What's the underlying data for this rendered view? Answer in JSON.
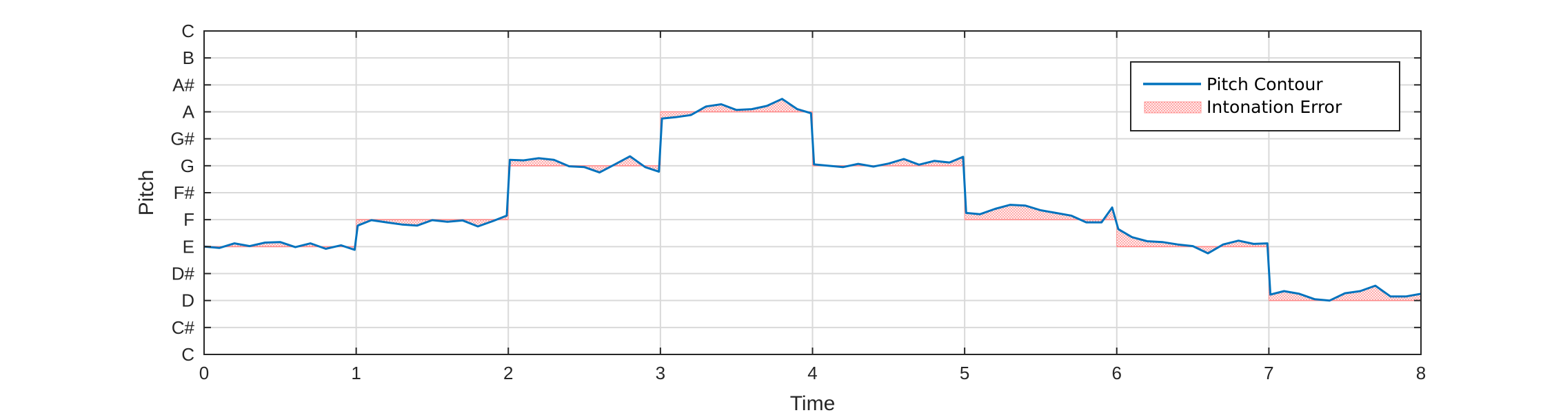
{
  "chart_data": {
    "type": "line",
    "xlabel": "Time",
    "ylabel": "Pitch",
    "xlim": [
      0,
      8
    ],
    "ylim": [
      0,
      12
    ],
    "x_ticks": [
      "0",
      "1",
      "2",
      "3",
      "4",
      "5",
      "6",
      "7",
      "8"
    ],
    "y_tick_labels": [
      "C",
      "C#",
      "D",
      "D#",
      "E",
      "F",
      "F#",
      "G",
      "G#",
      "A",
      "A#",
      "B",
      "C"
    ],
    "grid": true,
    "legend_position": "top-right",
    "colors": {
      "contour": "#0072BD",
      "error": "#ff8a8a",
      "grid": "#d9d9d9",
      "axis": "#262626"
    },
    "series": [
      {
        "name": "Pitch Contour",
        "points": [
          [
            0.0,
            4.0
          ],
          [
            0.1,
            3.95
          ],
          [
            0.2,
            4.12
          ],
          [
            0.3,
            4.02
          ],
          [
            0.4,
            4.15
          ],
          [
            0.5,
            4.17
          ],
          [
            0.6,
            3.98
          ],
          [
            0.7,
            4.12
          ],
          [
            0.8,
            3.92
          ],
          [
            0.9,
            4.05
          ],
          [
            0.99,
            3.88
          ],
          [
            1.01,
            4.78
          ],
          [
            1.1,
            4.98
          ],
          [
            1.2,
            4.9
          ],
          [
            1.3,
            4.82
          ],
          [
            1.4,
            4.78
          ],
          [
            1.5,
            4.98
          ],
          [
            1.6,
            4.92
          ],
          [
            1.7,
            4.97
          ],
          [
            1.8,
            4.75
          ],
          [
            1.9,
            4.95
          ],
          [
            1.99,
            5.15
          ],
          [
            2.01,
            7.22
          ],
          [
            2.1,
            7.2
          ],
          [
            2.2,
            7.28
          ],
          [
            2.3,
            7.22
          ],
          [
            2.4,
            6.98
          ],
          [
            2.5,
            6.95
          ],
          [
            2.6,
            6.75
          ],
          [
            2.7,
            7.05
          ],
          [
            2.8,
            7.35
          ],
          [
            2.9,
            6.95
          ],
          [
            2.99,
            6.78
          ],
          [
            3.01,
            8.75
          ],
          [
            3.1,
            8.8
          ],
          [
            3.2,
            8.88
          ],
          [
            3.3,
            9.2
          ],
          [
            3.4,
            9.28
          ],
          [
            3.5,
            9.07
          ],
          [
            3.6,
            9.1
          ],
          [
            3.7,
            9.22
          ],
          [
            3.8,
            9.48
          ],
          [
            3.9,
            9.1
          ],
          [
            3.99,
            8.95
          ],
          [
            4.01,
            7.05
          ],
          [
            4.1,
            7.0
          ],
          [
            4.2,
            6.95
          ],
          [
            4.3,
            7.07
          ],
          [
            4.4,
            6.97
          ],
          [
            4.5,
            7.08
          ],
          [
            4.6,
            7.25
          ],
          [
            4.7,
            7.04
          ],
          [
            4.8,
            7.18
          ],
          [
            4.9,
            7.12
          ],
          [
            4.99,
            7.33
          ],
          [
            5.01,
            5.25
          ],
          [
            5.1,
            5.2
          ],
          [
            5.2,
            5.4
          ],
          [
            5.3,
            5.55
          ],
          [
            5.4,
            5.52
          ],
          [
            5.5,
            5.35
          ],
          [
            5.6,
            5.25
          ],
          [
            5.7,
            5.15
          ],
          [
            5.8,
            4.9
          ],
          [
            5.9,
            4.9
          ],
          [
            5.97,
            5.45
          ],
          [
            6.01,
            4.65
          ],
          [
            6.1,
            4.35
          ],
          [
            6.2,
            4.2
          ],
          [
            6.3,
            4.17
          ],
          [
            6.4,
            4.08
          ],
          [
            6.5,
            4.02
          ],
          [
            6.6,
            3.75
          ],
          [
            6.7,
            4.08
          ],
          [
            6.8,
            4.22
          ],
          [
            6.9,
            4.1
          ],
          [
            6.99,
            4.12
          ],
          [
            7.01,
            2.22
          ],
          [
            7.1,
            2.35
          ],
          [
            7.2,
            2.25
          ],
          [
            7.3,
            2.05
          ],
          [
            7.4,
            2.0
          ],
          [
            7.5,
            2.27
          ],
          [
            7.6,
            2.35
          ],
          [
            7.7,
            2.55
          ],
          [
            7.8,
            2.15
          ],
          [
            7.9,
            2.15
          ],
          [
            8.0,
            2.25
          ]
        ]
      },
      {
        "name": "Intonation Error",
        "segments": [
          {
            "x": [
              0,
              1
            ],
            "reference": 4
          },
          {
            "x": [
              1,
              2
            ],
            "reference": 5
          },
          {
            "x": [
              2,
              3
            ],
            "reference": 7
          },
          {
            "x": [
              3,
              4
            ],
            "reference": 9
          },
          {
            "x": [
              4,
              5
            ],
            "reference": 7
          },
          {
            "x": [
              5,
              6
            ],
            "reference": 5
          },
          {
            "x": [
              6,
              7
            ],
            "reference": 4
          },
          {
            "x": [
              7,
              8
            ],
            "reference": 2
          }
        ]
      }
    ]
  }
}
